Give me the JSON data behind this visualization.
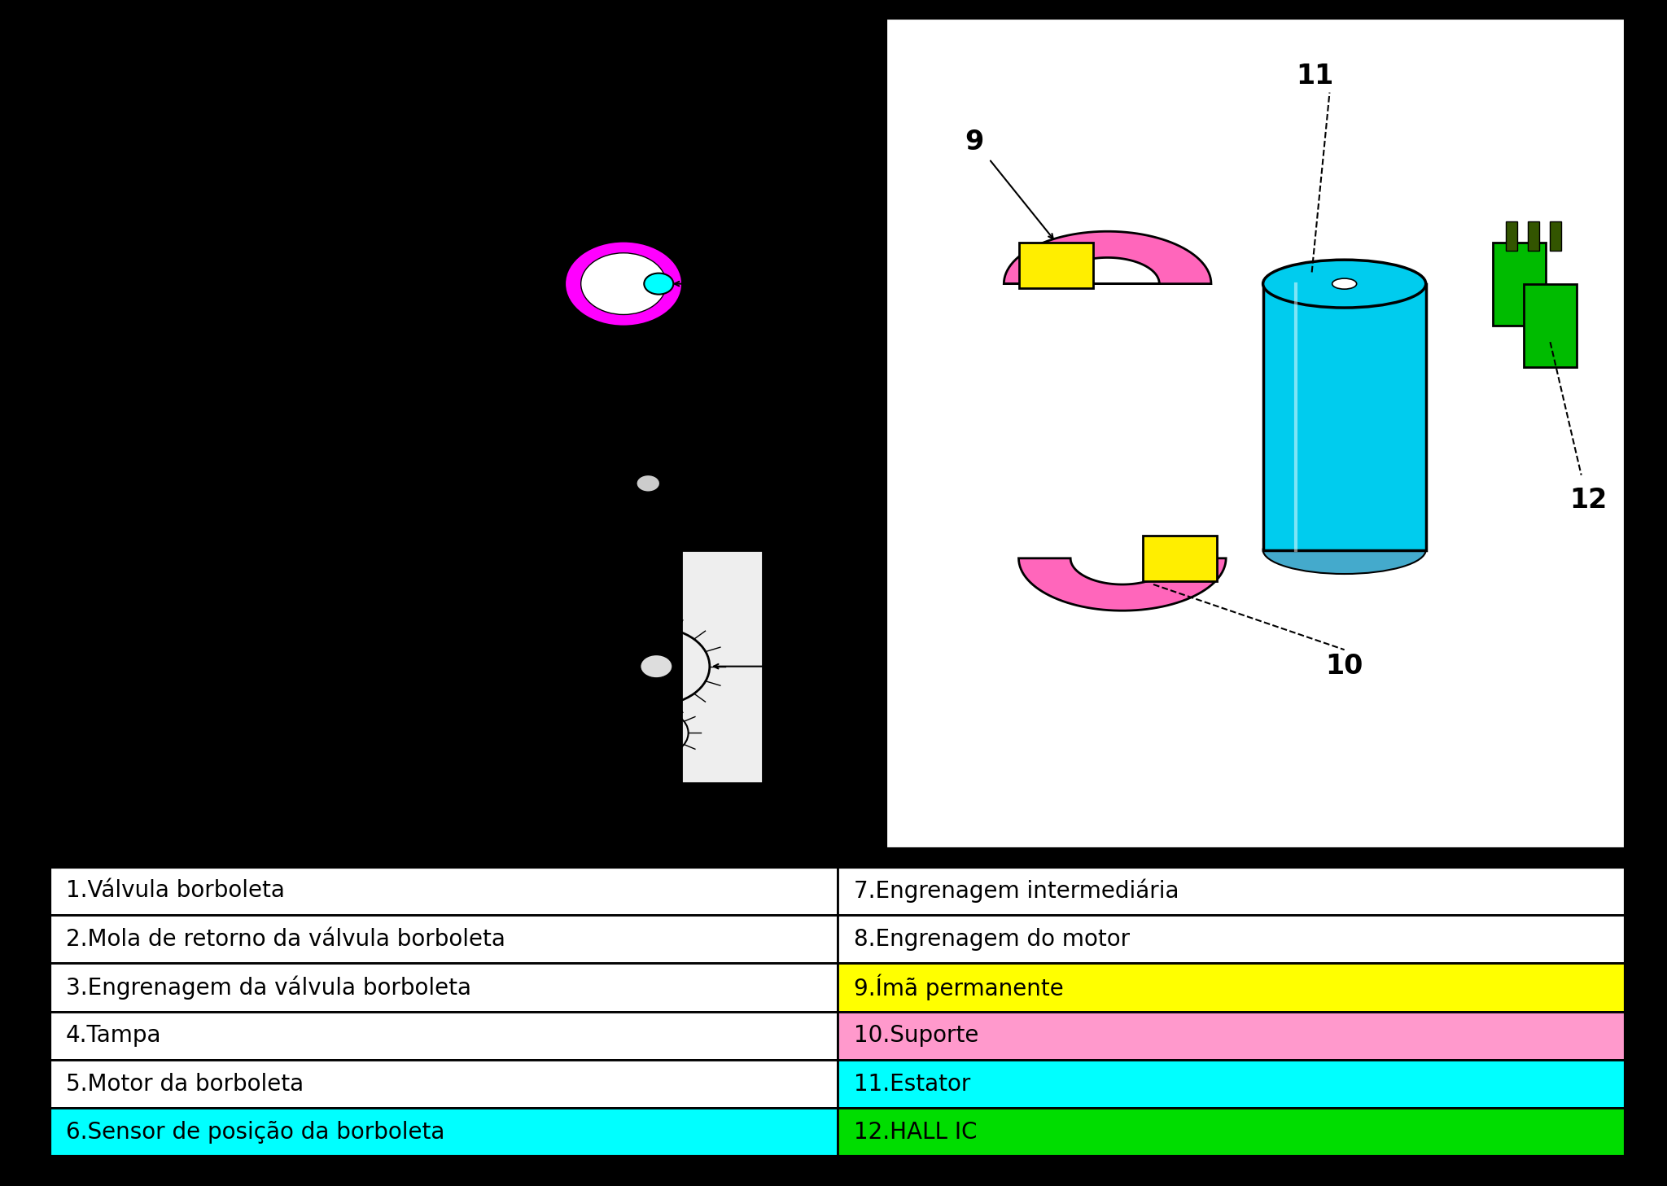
{
  "table_rows": [
    {
      "left": "1.Válvula borboleta",
      "right": "7.Engrenagem intermediária",
      "left_bg": "#ffffff",
      "right_bg": "#ffffff",
      "left_text": "#000000",
      "right_text": "#000000"
    },
    {
      "left": "2.Mola de retorno da válvula borboleta",
      "right": "8.Engrenagem do motor",
      "left_bg": "#ffffff",
      "right_bg": "#ffffff",
      "left_text": "#000000",
      "right_text": "#000000"
    },
    {
      "left": "3.Engrenagem da válvula borboleta",
      "right": "9.Ímã permanente",
      "left_bg": "#ffffff",
      "right_bg": "#ffff00",
      "left_text": "#000000",
      "right_text": "#000000"
    },
    {
      "left": "4.Tampa",
      "right": "10.Suporte",
      "left_bg": "#ffffff",
      "right_bg": "#ff99cc",
      "left_text": "#000000",
      "right_text": "#000000"
    },
    {
      "left": "5.Motor da borboleta",
      "right": "11.Estator",
      "left_bg": "#ffffff",
      "right_bg": "#00ffff",
      "left_text": "#000000",
      "right_text": "#000000"
    },
    {
      "left": "6.Sensor de posição da borboleta",
      "right": "12.HALL IC",
      "left_bg": "#00ffff",
      "right_bg": "#00dd00",
      "left_text": "#000000",
      "right_text": "#000000"
    }
  ],
  "background_color": "#000000",
  "diagram_bg": "#ffffff",
  "outer_bg": "#ffffff",
  "table_border_color": "#000000",
  "font_size_table": 20,
  "font_size_label": 24
}
